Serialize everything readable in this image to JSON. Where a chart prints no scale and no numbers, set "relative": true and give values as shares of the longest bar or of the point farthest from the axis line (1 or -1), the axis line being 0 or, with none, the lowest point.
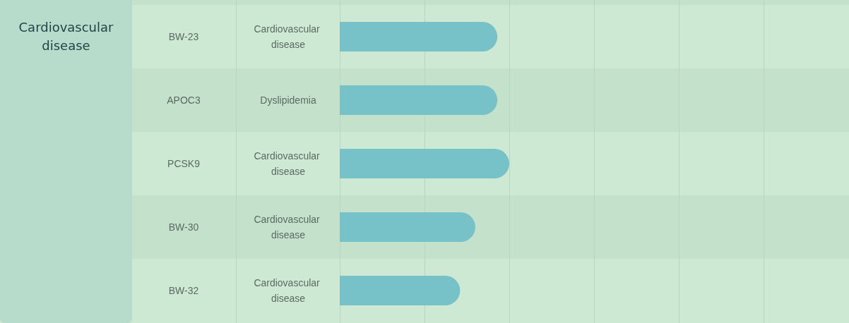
{
  "chart_data": {
    "type": "bar",
    "orientation": "horizontal",
    "relative": true,
    "ylabel": "Cardiovascular disease",
    "categories": [
      "BW-23",
      "APOC3",
      "PCSK9",
      "BW-30",
      "BW-32"
    ],
    "values": [
      0.93,
      0.93,
      1,
      0.8,
      0.71
    ],
    "color": "#77c2c8",
    "annotations": [
      "Cardiovascular disease",
      "Dyslipidemia",
      "Cardiovascular disease",
      "Cardiovascular disease",
      "Cardiovascular disease"
    ]
  }
}
